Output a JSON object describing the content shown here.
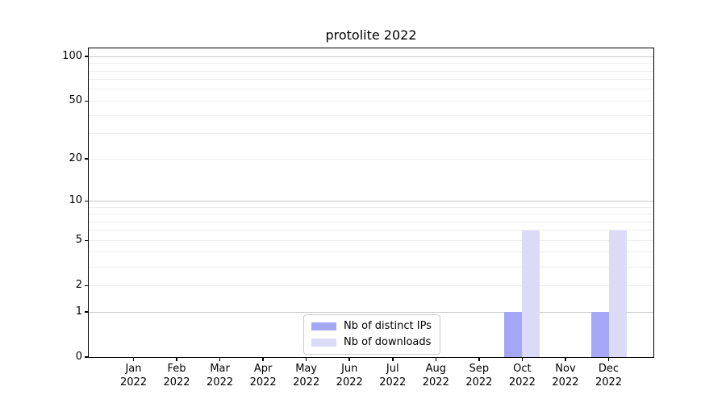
{
  "chart_data": {
    "type": "bar",
    "title": "protolite 2022",
    "categories": [
      "Jan 2022",
      "Feb 2022",
      "Mar 2022",
      "Apr 2022",
      "May 2022",
      "Jun 2022",
      "Jul 2022",
      "Aug 2022",
      "Sep 2022",
      "Oct 2022",
      "Nov 2022",
      "Dec 2022"
    ],
    "series": [
      {
        "name": "Nb of distinct IPs",
        "color": "#a6a6f7",
        "values": [
          0,
          0,
          0,
          0,
          0,
          0,
          0,
          0,
          0,
          1,
          0,
          1
        ]
      },
      {
        "name": "Nb of downloads",
        "color": "#dbdbf8",
        "values": [
          0,
          0,
          0,
          0,
          0,
          0,
          0,
          0,
          0,
          6,
          0,
          6
        ]
      }
    ],
    "xlabel": "",
    "ylabel": "",
    "y_scale": "log1p",
    "y_ticks": [
      0,
      1,
      2,
      5,
      10,
      20,
      50,
      100
    ],
    "grid_major": [
      1,
      10,
      100
    ],
    "grid_minor": [
      2,
      3,
      4,
      5,
      6,
      7,
      8,
      9,
      20,
      30,
      40,
      50,
      60,
      70,
      80,
      90
    ],
    "ylim": [
      0,
      113
    ],
    "grid": "on",
    "legend_position": "lower center"
  }
}
